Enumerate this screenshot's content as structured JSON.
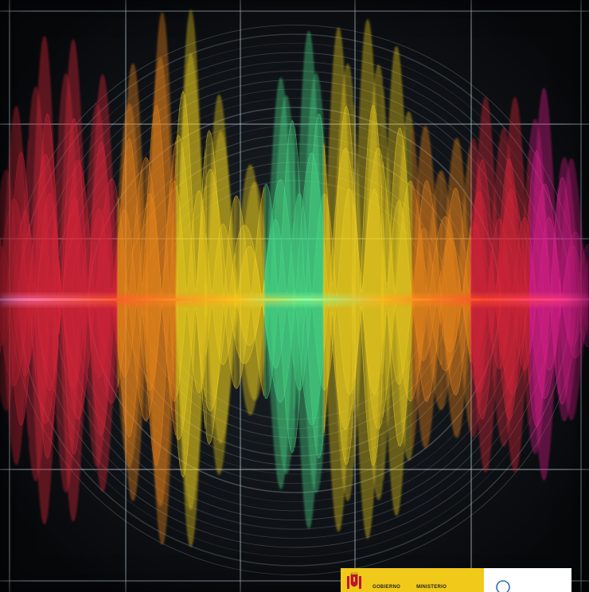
{
  "scene": {
    "subject": "sound-wave-art",
    "colors": {
      "background": "#0b0d10",
      "grid": "#cfe6ef",
      "red": "#e0263a",
      "orange": "#f28a1c",
      "yellow": "#f2d21e",
      "green": "#49e08a",
      "magenta": "#e0208c"
    }
  },
  "footer": {
    "gov_label": "GOBIERNO",
    "ministry_label": "MINISTERIO",
    "crest_icon": "spain-coat-of-arms",
    "partner_icon": "partner-logo-mark"
  }
}
